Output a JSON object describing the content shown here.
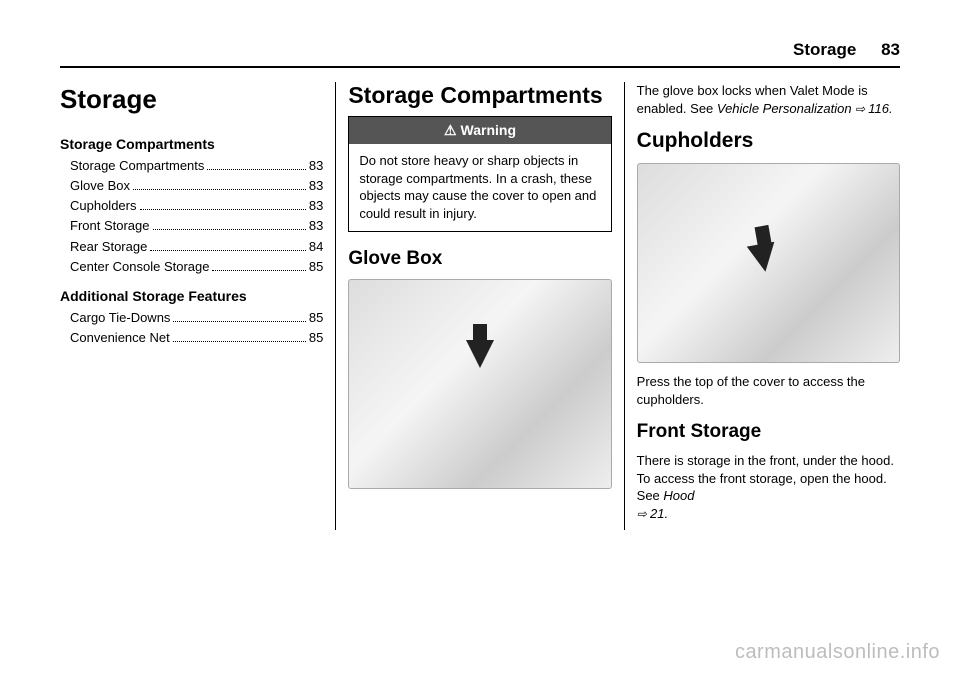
{
  "header": {
    "chapter": "Storage",
    "page": "83"
  },
  "col1": {
    "title": "Storage",
    "toc1_heading": "Storage Compartments",
    "toc1": [
      {
        "label": "Storage Compartments",
        "page": "83"
      },
      {
        "label": "Glove Box",
        "page": "83"
      },
      {
        "label": "Cupholders",
        "page": "83"
      },
      {
        "label": "Front Storage",
        "page": "83"
      },
      {
        "label": "Rear Storage",
        "page": "84"
      },
      {
        "label": "Center Console Storage",
        "page": "85"
      }
    ],
    "toc2_heading": "Additional Storage Features",
    "toc2": [
      {
        "label": "Cargo Tie-Downs",
        "page": "85"
      },
      {
        "label": "Convenience Net",
        "page": "85"
      }
    ]
  },
  "col2": {
    "title": "Storage Compartments",
    "warning_label": "Warning",
    "warning_body": "Do not store heavy or sharp objects in storage compartments. In a crash, these objects may cause the cover to open and could result in injury.",
    "glovebox_title": "Glove Box"
  },
  "col3": {
    "intro": "The glove box locks when Valet Mode is enabled. See ",
    "intro_ref": "Vehicle Personalization",
    "intro_ref_page": "116",
    "cupholders_title": "Cupholders",
    "cupholders_caption": "Press the top of the cover to access the cupholders.",
    "front_storage_title": "Front Storage",
    "front_storage_body": "There is storage in the front, under the hood. To access the front storage, open the hood. See ",
    "front_storage_ref": "Hood",
    "front_storage_ref_page": "21"
  },
  "watermark": "carmanualsonline.info"
}
